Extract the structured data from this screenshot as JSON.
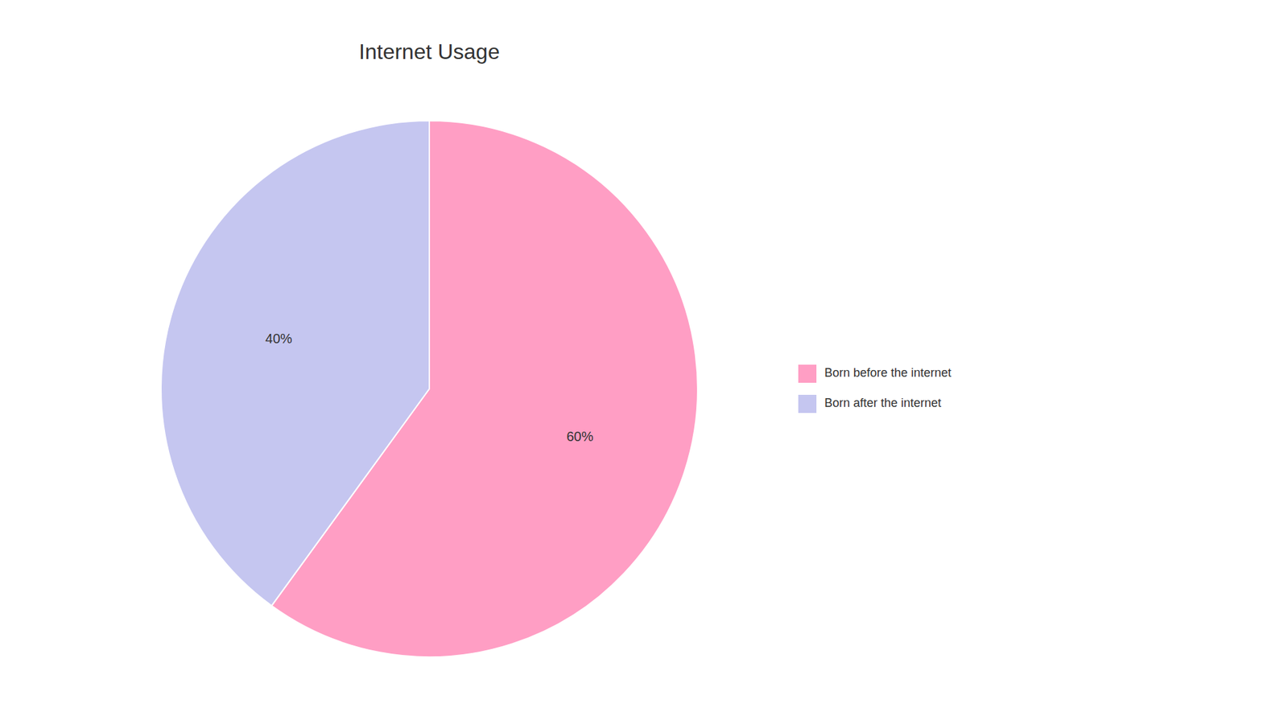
{
  "chart_data": {
    "type": "pie",
    "title": "Internet Usage",
    "categories": [
      "Born before the internet",
      "Born after the internet"
    ],
    "values": [
      60,
      40
    ],
    "value_labels": [
      "60%",
      "40%"
    ],
    "colors": [
      "#FF9EC4",
      "#C5C6F0"
    ],
    "data_labels": true,
    "legend": "right"
  }
}
